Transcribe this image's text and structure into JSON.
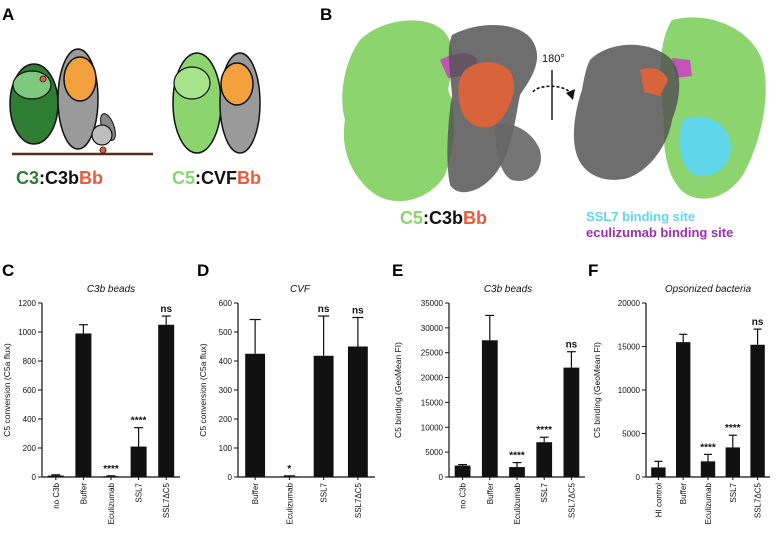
{
  "panels": {
    "A": "A",
    "B": "B",
    "C": "C",
    "D": "D",
    "E": "E",
    "F": "F"
  },
  "colors": {
    "c3_green": "#2e7d32",
    "c5_green": "#8bd46e",
    "bb_orange": "#ef5a3a",
    "ssl7_cyan": "#5fd6ea",
    "eculizumab_purple": "#9b2fae",
    "bar": "#111111"
  },
  "panelA": {
    "left": {
      "part1": "C3",
      "sep": ":",
      "part2": "C3b",
      "part3": "Bb"
    },
    "right": {
      "part1": "C5",
      "sep": ":",
      "part2": "CVF",
      "part3": "Bb"
    }
  },
  "panelB": {
    "rotation": "180°",
    "complex": {
      "part1": "C5",
      "sep": ":",
      "part2": "C3b",
      "part3": "Bb"
    },
    "legend": [
      "SSL7 binding site",
      "eculizumab binding site"
    ],
    "icon_names": [
      "rotate-arrow-icon"
    ]
  },
  "chart_data": [
    {
      "type": "bar",
      "title": "C3b beads",
      "ylabel": "C5 conversion (C5a flux)",
      "ylim": [
        0,
        1200
      ],
      "yticks": [
        0,
        200,
        400,
        600,
        800,
        1000,
        1200
      ],
      "categories": [
        "no C3b",
        "Buffer",
        "Eculizumab",
        "SSL7",
        "SSL7ΔC5"
      ],
      "values": [
        10,
        990,
        5,
        210,
        1050
      ],
      "errors": [
        5,
        60,
        3,
        130,
        60
      ],
      "significance": [
        "",
        "",
        "****",
        "****",
        "ns"
      ]
    },
    {
      "type": "bar",
      "title": "CVF",
      "ylabel": "C5 conversion (C5a flux)",
      "ylim": [
        0,
        600
      ],
      "yticks": [
        0,
        100,
        200,
        300,
        400,
        500,
        600
      ],
      "categories": [
        "Buffer",
        "Eculizumab",
        "SSL7",
        "SSL7ΔC5"
      ],
      "values": [
        425,
        2,
        418,
        450
      ],
      "errors": [
        118,
        2,
        137,
        100
      ],
      "significance": [
        "",
        "*",
        "ns",
        "ns"
      ]
    },
    {
      "type": "bar",
      "title": "C3b beads",
      "ylabel": "C5 binding (GeoMean  FI)",
      "ylim": [
        0,
        35000
      ],
      "yticks": [
        0,
        5000,
        10000,
        15000,
        20000,
        25000,
        30000,
        35000
      ],
      "categories": [
        "no C3b",
        "Buffer",
        "Eculizumab",
        "SSL7",
        "SSL7ΔC5"
      ],
      "values": [
        2300,
        27500,
        2000,
        7000,
        22000
      ],
      "errors": [
        200,
        5000,
        900,
        1000,
        3200
      ],
      "significance": [
        "",
        "",
        "****",
        "****",
        "ns"
      ]
    },
    {
      "type": "bar",
      "title": "Opsonized bacteria",
      "ylabel": "C5 binding (GeoMean FI)",
      "ylim": [
        0,
        20000
      ],
      "yticks": [
        0,
        5000,
        10000,
        15000,
        20000
      ],
      "categories": [
        "HI control",
        "Buffer",
        "Eculizumab",
        "SSL7",
        "SSL7ΔC5"
      ],
      "values": [
        1100,
        15500,
        1800,
        3400,
        15200
      ],
      "errors": [
        700,
        900,
        800,
        1400,
        1800
      ],
      "significance": [
        "",
        "",
        "****",
        "****",
        "ns"
      ]
    }
  ]
}
